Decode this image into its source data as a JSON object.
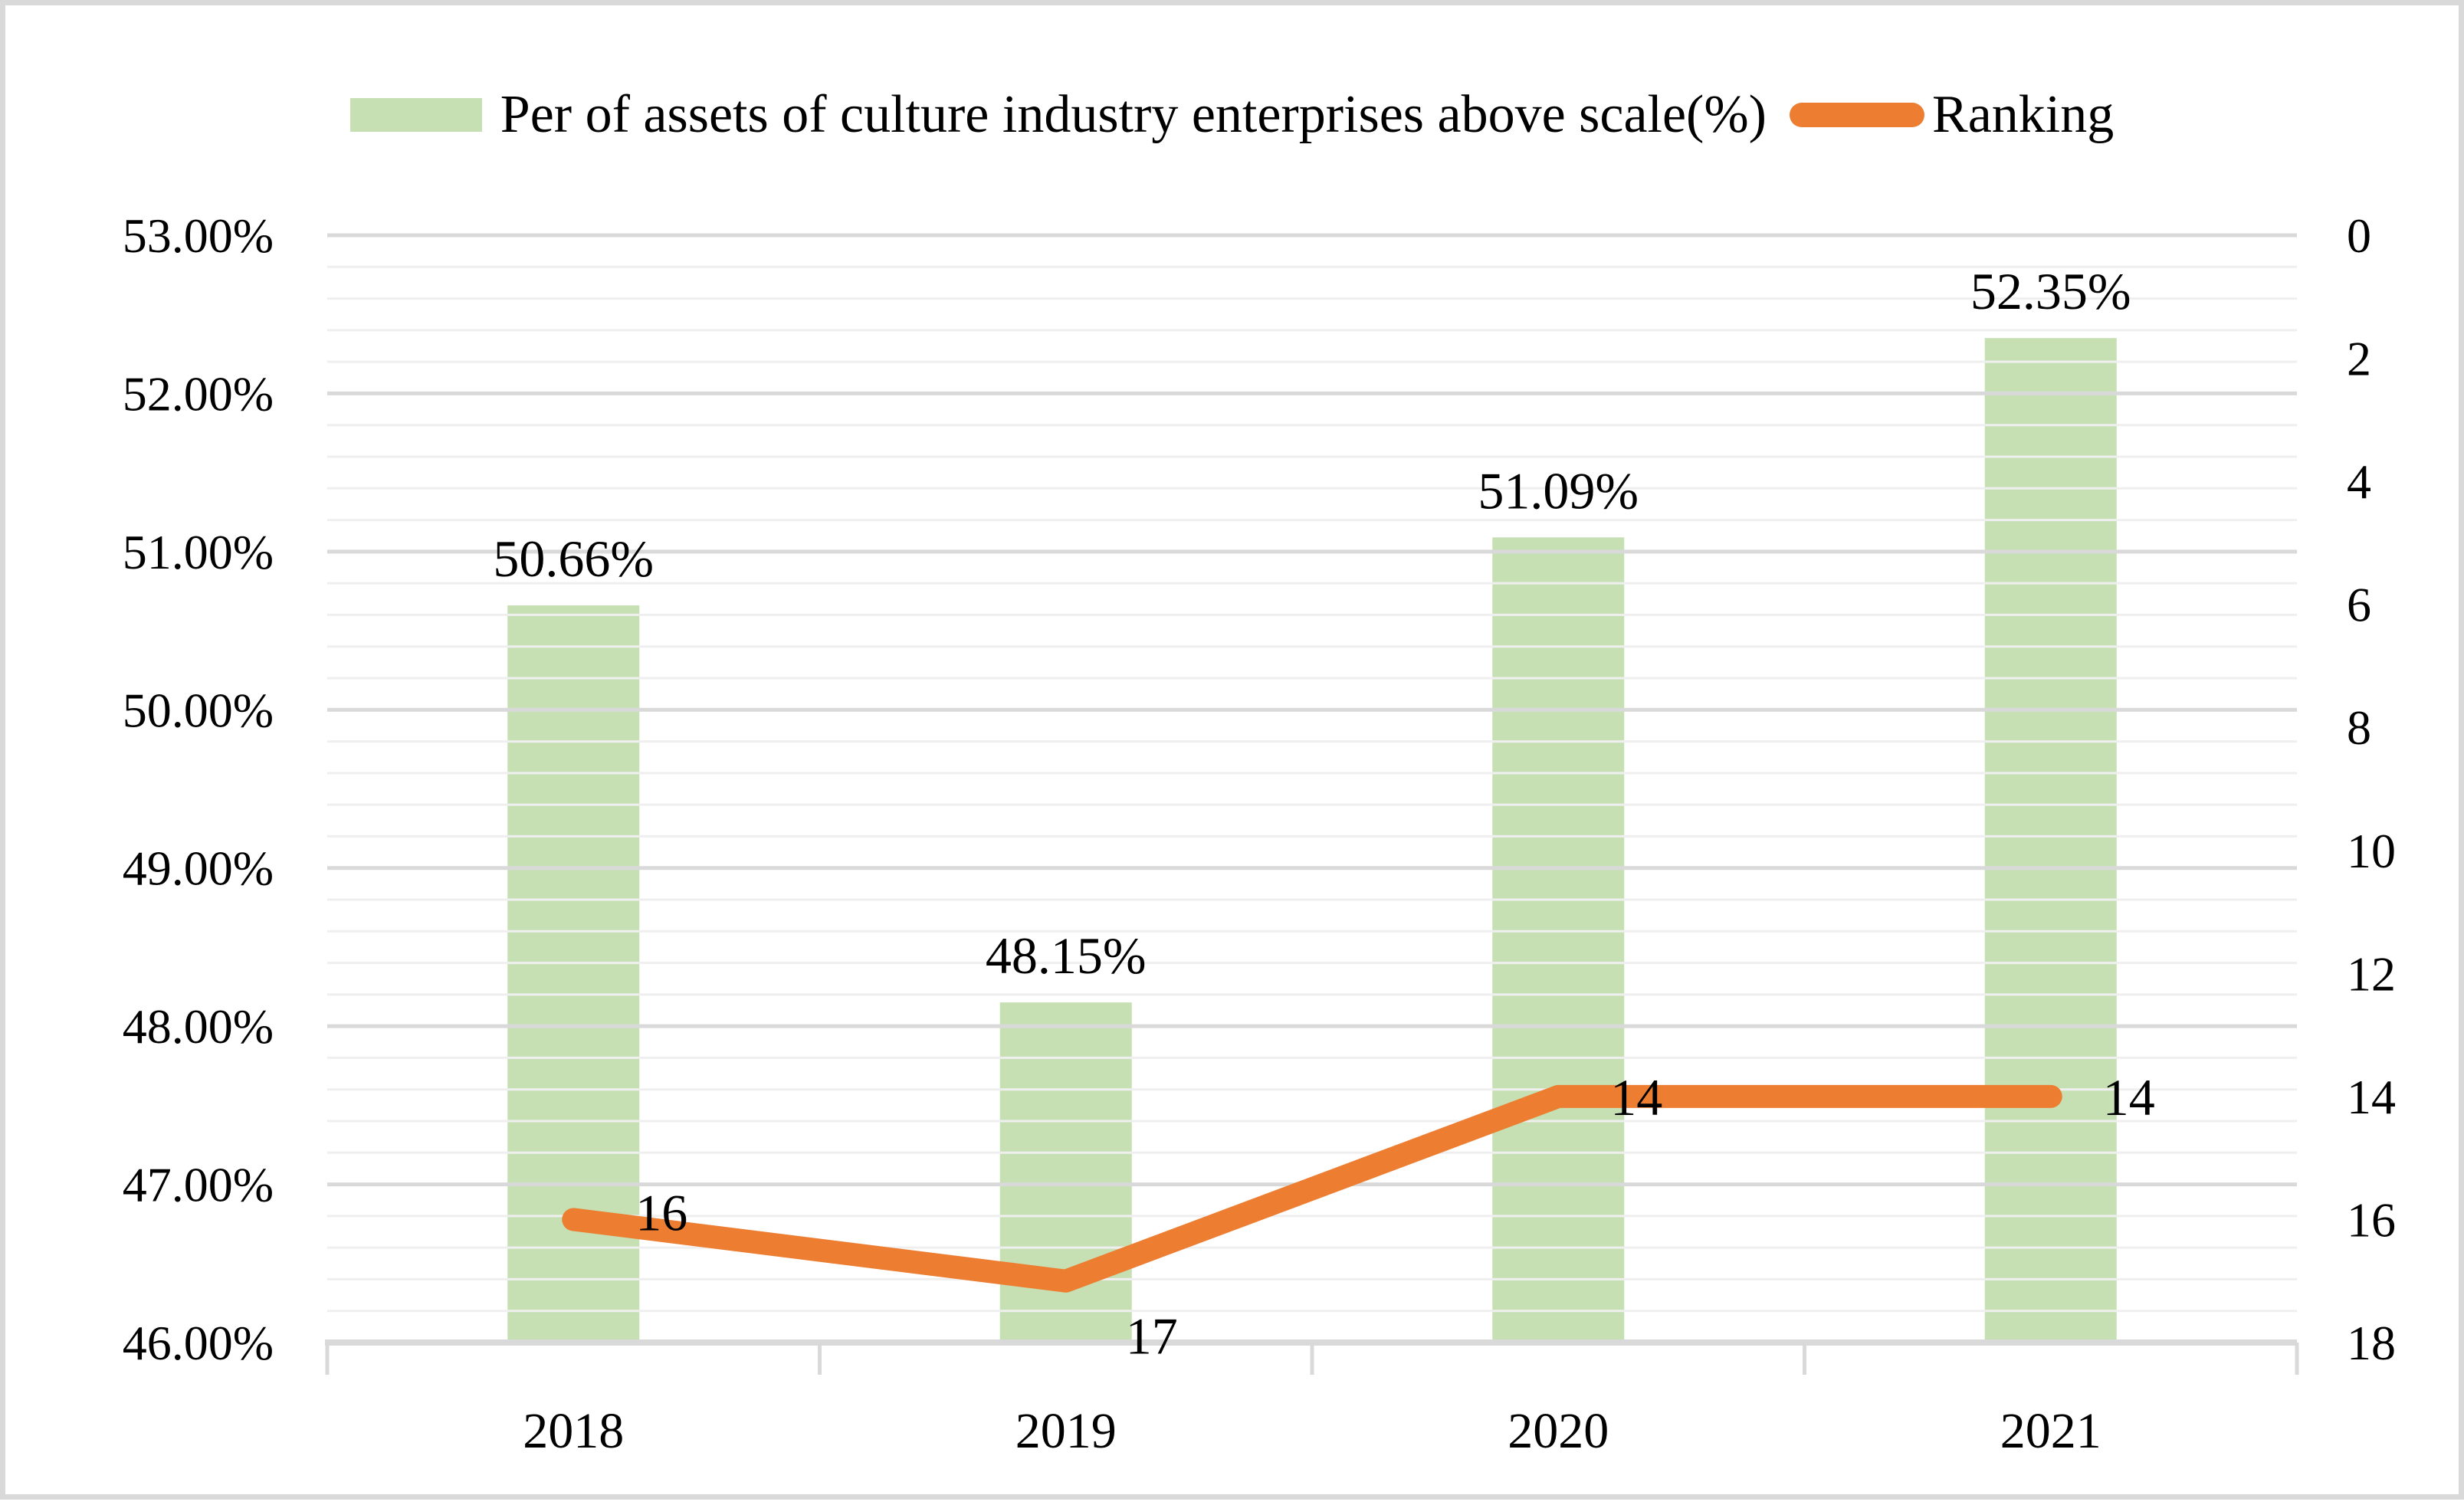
{
  "figure": {
    "background": "#ffffff",
    "border_color": "#d9d9d9"
  },
  "legend": {
    "items": [
      {
        "label": "Per of assets of culture industry enterprises above scale(%)",
        "swatch": "bar-swatch",
        "color": "#c6e0b4"
      },
      {
        "label": "Ranking",
        "swatch": "line-swatch",
        "color": "#ed7d31"
      }
    ]
  },
  "chart_data": {
    "type": "combo-bar-line",
    "categories": [
      "2018",
      "2019",
      "2020",
      "2021"
    ],
    "series": [
      {
        "name": "Per of assets of culture industry enterprises above scale(%)",
        "type": "bar",
        "axis": "left",
        "color": "#c6e0b4",
        "values": [
          50.66,
          48.15,
          51.09,
          52.35
        ],
        "data_labels": [
          "50.66%",
          "48.15%",
          "51.09%",
          "52.35%"
        ]
      },
      {
        "name": "Ranking",
        "type": "line",
        "axis": "right",
        "color": "#ed7d31",
        "values": [
          16,
          17,
          14,
          14
        ],
        "data_labels": [
          "16",
          "17",
          "14",
          "14"
        ]
      }
    ],
    "left_axis": {
      "min": 46,
      "max": 53,
      "major_step": 1,
      "minor_step": 0.2,
      "tick_labels": [
        "53.00%",
        "52.00%",
        "51.00%",
        "50.00%",
        "49.00%",
        "48.00%",
        "47.00%",
        "46.00%"
      ]
    },
    "right_axis": {
      "min": 0,
      "max": 18,
      "step": 2,
      "inverted": true,
      "tick_labels": [
        "0",
        "2",
        "4",
        "6",
        "8",
        "10",
        "12",
        "14",
        "16",
        "18"
      ]
    },
    "grid": {
      "major_on": true,
      "minor_on": true,
      "major_color": "#d9d9d9",
      "minor_color": "#efefef",
      "axis_line_color": "#d9d9d9",
      "text_color": "#000000",
      "legend_position": "top"
    }
  }
}
